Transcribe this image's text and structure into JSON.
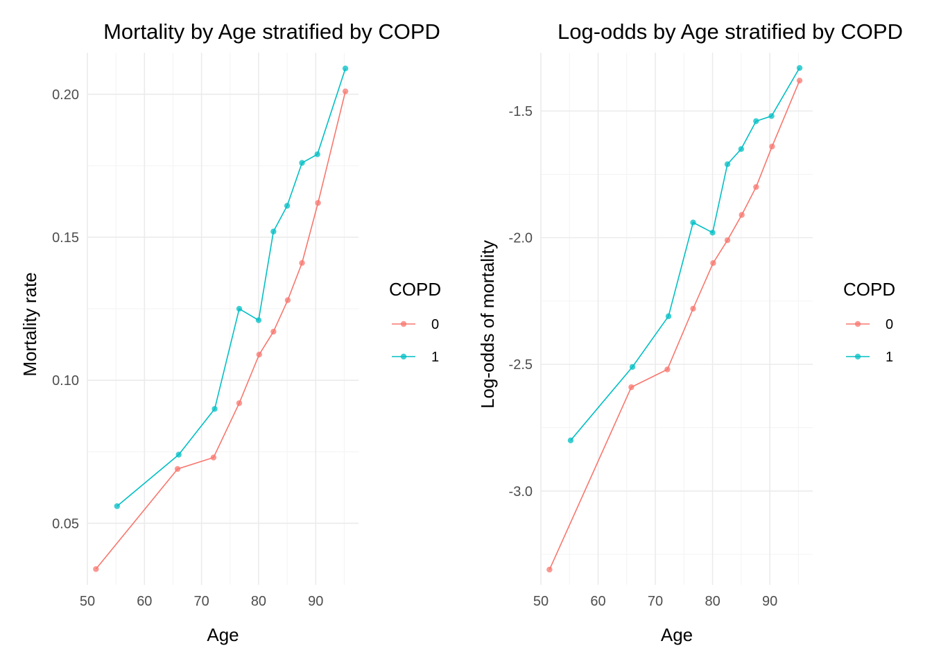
{
  "chart_data": [
    {
      "type": "line",
      "title": "Mortality by Age stratified by COPD",
      "xlabel": "Age",
      "ylabel": "Mortality rate",
      "xlim": [
        50,
        97.5
      ],
      "ylim": [
        0.0285,
        0.2145
      ],
      "x_ticks": [
        50,
        60,
        70,
        80,
        90
      ],
      "x_tick_labels": [
        "50",
        "60",
        "70",
        "80",
        "90"
      ],
      "y_ticks": [
        0.05,
        0.1,
        0.15,
        0.2
      ],
      "y_tick_labels": [
        "0.05",
        "0.10",
        "0.15",
        "0.20"
      ],
      "grid": true,
      "legend": {
        "title": "COPD",
        "placement": "right"
      },
      "series": [
        {
          "name": "0",
          "color": "#F8766D",
          "x": [
            51.5,
            65.8,
            72.1,
            76.6,
            80.1,
            82.6,
            85.1,
            87.6,
            90.4,
            95.2
          ],
          "y": [
            0.034,
            0.069,
            0.073,
            0.092,
            0.109,
            0.117,
            0.128,
            0.141,
            0.162,
            0.201
          ]
        },
        {
          "name": "1",
          "color": "#00BFC4",
          "x": [
            55.2,
            66.0,
            72.3,
            76.6,
            80.0,
            82.6,
            85.0,
            87.6,
            90.3,
            95.2
          ],
          "y": [
            0.056,
            0.074,
            0.09,
            0.125,
            0.121,
            0.152,
            0.161,
            0.176,
            0.179,
            0.209
          ]
        }
      ]
    },
    {
      "type": "line",
      "title": "Log-odds by Age stratified by COPD",
      "xlabel": "Age",
      "ylabel": "Log-odds of mortality",
      "xlim": [
        50,
        97.5
      ],
      "ylim": [
        -3.37,
        -1.27
      ],
      "x_ticks": [
        50,
        60,
        70,
        80,
        90
      ],
      "x_tick_labels": [
        "50",
        "60",
        "70",
        "80",
        "90"
      ],
      "y_ticks": [
        -3.0,
        -2.5,
        -2.0,
        -1.5
      ],
      "y_tick_labels": [
        "-3.0",
        "-2.5",
        "-2.0",
        "-1.5"
      ],
      "grid": true,
      "legend": {
        "title": "COPD",
        "placement": "right"
      },
      "series": [
        {
          "name": "0",
          "color": "#F8766D",
          "x": [
            51.5,
            65.8,
            72.1,
            76.6,
            80.1,
            82.6,
            85.1,
            87.6,
            90.4,
            95.2
          ],
          "y": [
            -3.31,
            -2.59,
            -2.52,
            -2.28,
            -2.1,
            -2.01,
            -1.91,
            -1.8,
            -1.64,
            -1.38
          ]
        },
        {
          "name": "1",
          "color": "#00BFC4",
          "x": [
            55.2,
            66.0,
            72.3,
            76.6,
            80.0,
            82.6,
            85.0,
            87.6,
            90.3,
            95.2
          ],
          "y": [
            -2.8,
            -2.51,
            -2.31,
            -1.94,
            -1.98,
            -1.71,
            -1.65,
            -1.54,
            -1.52,
            -1.33
          ]
        }
      ]
    }
  ]
}
